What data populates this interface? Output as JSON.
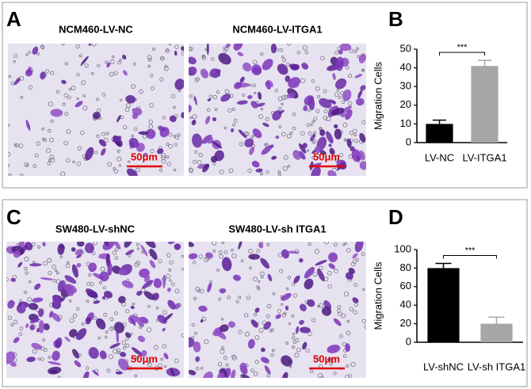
{
  "panels": [
    {
      "letter": "A",
      "images": [
        {
          "title": "NCM460-LV-NC",
          "scale": "50μm"
        },
        {
          "title": "NCM460-LV-ITGA1",
          "scale": "50μm"
        }
      ]
    },
    {
      "letter": "C",
      "images": [
        {
          "title": "SW480-LV-shNC",
          "scale": "50μm"
        },
        {
          "title": "SW480-LV-sh ITGA1",
          "scale": "50μm"
        }
      ]
    }
  ],
  "chart_data": [
    {
      "type": "bar",
      "panel_label": "B",
      "y_label": "Migration Cells",
      "categories": [
        "LV-NC",
        "LV-ITGA1"
      ],
      "values": [
        10,
        41
      ],
      "errors": [
        2,
        3
      ],
      "colors": [
        "#000000",
        "#a6a6a6"
      ],
      "ylim": [
        0,
        50
      ],
      "yticks": [
        0,
        10,
        20,
        30,
        40,
        50
      ],
      "annotation": "***"
    },
    {
      "type": "bar",
      "panel_label": "D",
      "y_label": "Migration Cells",
      "categories": [
        "LV-shNC",
        "LV-sh ITGA1"
      ],
      "values": [
        80,
        20
      ],
      "errors": [
        5,
        7
      ],
      "colors": [
        "#000000",
        "#a6a6a6"
      ],
      "ylim": [
        0,
        100
      ],
      "yticks": [
        0,
        20,
        40,
        60,
        80,
        100
      ],
      "annotation": "***"
    }
  ]
}
